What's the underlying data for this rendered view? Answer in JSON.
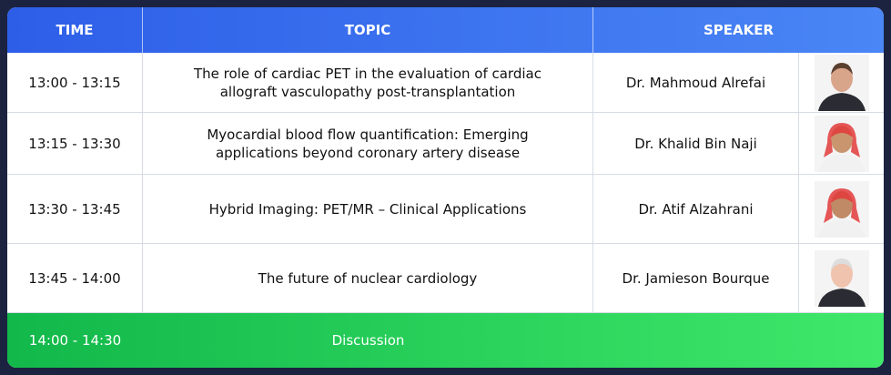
{
  "header": {
    "columns": [
      "TIME",
      "TOPIC",
      "SPEAKER"
    ]
  },
  "rows": [
    {
      "time": "13:00 - 13:15",
      "topic": "The role of cardiac PET in the evaluation of cardiac allograft vasculopathy post-transplantation",
      "speaker": "Dr. Mahmoud Alrefai"
    },
    {
      "time": "13:15 - 13:30",
      "topic": "Myocardial blood flow quantification: Emerging applications beyond coronary artery disease",
      "speaker": "Dr. Khalid Bin Naji"
    },
    {
      "time": "13:30 - 13:45",
      "topic": "Hybrid Imaging: PET/MR – Clinical Applications",
      "speaker": "Dr. Atif Alzahrani"
    },
    {
      "time": "13:45 - 14:00",
      "topic": "The future of nuclear cardiology",
      "speaker": "Dr. Jamieson Bourque"
    }
  ],
  "discussion": {
    "time": "14:00 - 14:30",
    "label": "Discussion"
  }
}
